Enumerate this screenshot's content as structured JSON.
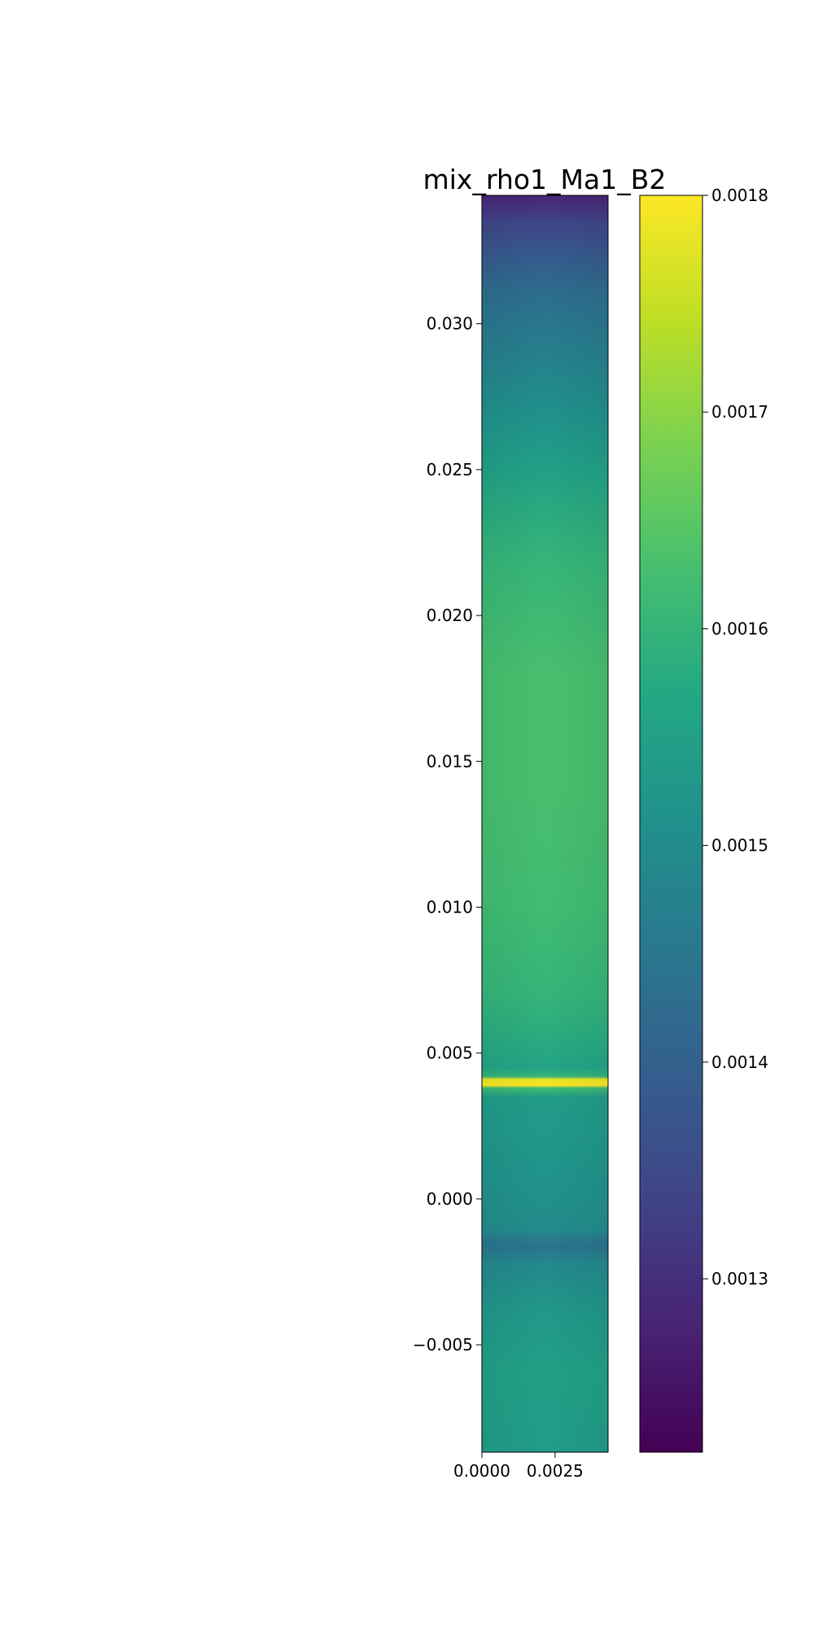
{
  "chart_data": {
    "type": "heatmap",
    "title": "mix_rho1_Ma1_B2",
    "xlabel": "",
    "ylabel": "",
    "xlim": [
      0.0,
      0.00431
    ],
    "ylim": [
      -0.00868,
      0.0344
    ],
    "x_ticks": [
      0.0,
      0.0025
    ],
    "x_tick_labels": [
      "0.0000",
      "0.0025"
    ],
    "y_ticks": [
      -0.005,
      0.0,
      0.005,
      0.01,
      0.015,
      0.02,
      0.025,
      0.03
    ],
    "y_tick_labels": [
      "−0.005",
      "0.000",
      "0.005",
      "0.010",
      "0.015",
      "0.020",
      "0.025",
      "0.030"
    ],
    "colormap": "viridis",
    "colorbar": {
      "vmin": 0.00122,
      "vmax": 0.0018,
      "ticks": [
        0.0013,
        0.0014,
        0.0015,
        0.0016,
        0.0017,
        0.0018
      ],
      "tick_labels": [
        "0.0013",
        "0.0014",
        "0.0015",
        "0.0016",
        "0.0017",
        "0.0018"
      ]
    },
    "vertical_profile": [
      {
        "y": 0.0344,
        "value": 0.00128
      },
      {
        "y": 0.0335,
        "value": 0.00134
      },
      {
        "y": 0.0325,
        "value": 0.00138
      },
      {
        "y": 0.031,
        "value": 0.00143
      },
      {
        "y": 0.029,
        "value": 0.00147
      },
      {
        "y": 0.027,
        "value": 0.00151
      },
      {
        "y": 0.025,
        "value": 0.00155
      },
      {
        "y": 0.022,
        "value": 0.0016
      },
      {
        "y": 0.018,
        "value": 0.00163
      },
      {
        "y": 0.014,
        "value": 0.00163
      },
      {
        "y": 0.01,
        "value": 0.00162
      },
      {
        "y": 0.007,
        "value": 0.0016
      },
      {
        "y": 0.0045,
        "value": 0.00156
      },
      {
        "y": 0.0042,
        "value": 0.0016
      },
      {
        "y": 0.0041,
        "value": 0.00178
      },
      {
        "y": 0.0039,
        "value": 0.0018
      },
      {
        "y": 0.0038,
        "value": 0.00162
      },
      {
        "y": 0.0035,
        "value": 0.00154
      },
      {
        "y": 0.001,
        "value": 0.00152
      },
      {
        "y": -0.001,
        "value": 0.0015
      },
      {
        "y": -0.0016,
        "value": 0.00144
      },
      {
        "y": -0.0022,
        "value": 0.00149
      },
      {
        "y": -0.004,
        "value": 0.00153
      },
      {
        "y": -0.006,
        "value": 0.00155
      },
      {
        "y": -0.00868,
        "value": 0.00154
      }
    ],
    "grid": false,
    "legend": "colorbar-right"
  }
}
